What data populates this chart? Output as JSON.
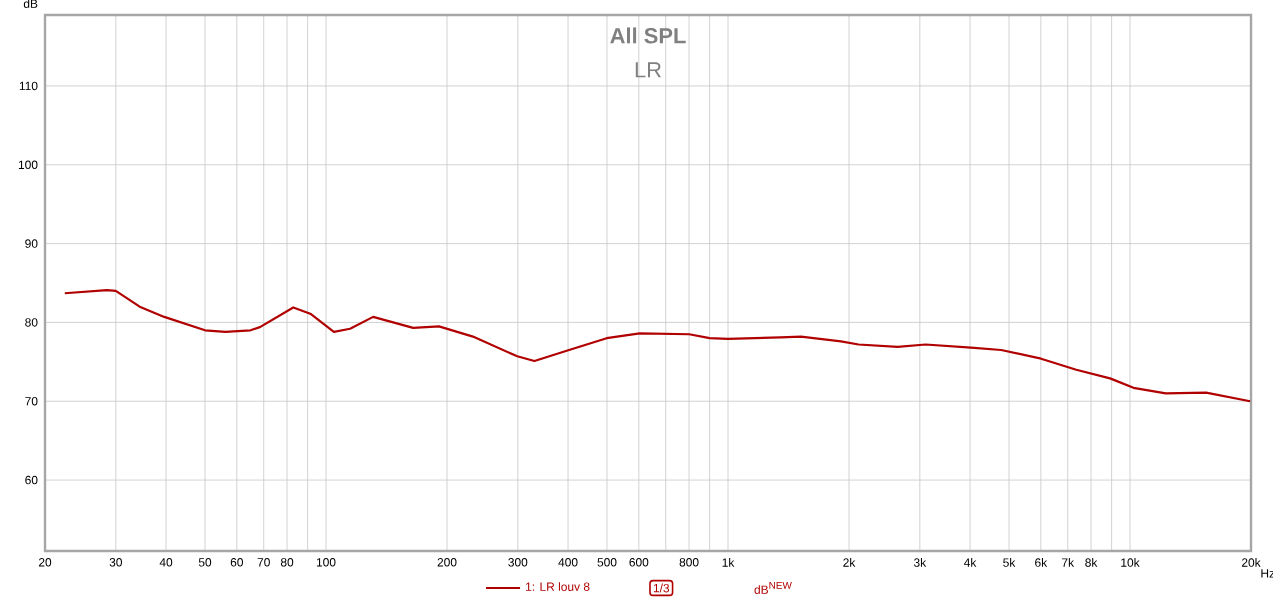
{
  "chart_data": {
    "type": "line",
    "title": "All SPL",
    "subtitle": "LR",
    "ylabel": "dB",
    "x": [
      22.4,
      28.5,
      30,
      34.4,
      39.6,
      50,
      56.2,
      64.9,
      68.5,
      82.9,
      91.4,
      104.6,
      114.8,
      131,
      164.7,
      191,
      232,
      299,
      330,
      397,
      499,
      603,
      801,
      900,
      1000,
      1353,
      1519,
      1910,
      2113,
      2641,
      3101,
      4020,
      4780,
      6010,
      7350,
      8920,
      10200,
      12270,
      15460,
      19900
    ],
    "series": [
      {
        "name": "1: LR louv 8",
        "color": "#b00000",
        "values": [
          83.7,
          84.1,
          84.0,
          82.0,
          80.7,
          79.0,
          78.8,
          79.0,
          79.4,
          81.9,
          81.1,
          78.8,
          79.2,
          80.7,
          79.3,
          79.5,
          78.2,
          75.7,
          75.1,
          76.4,
          78.0,
          78.6,
          78.5,
          78.0,
          77.9,
          78.1,
          78.2,
          77.6,
          77.2,
          76.9,
          77.2,
          76.8,
          76.5,
          75.4,
          74.0,
          72.9,
          71.7,
          71.0,
          71.1,
          70.0
        ]
      }
    ],
    "xlim": [
      20,
      20000
    ],
    "ylim": [
      51,
      119
    ],
    "xticks": [
      {
        "value": 20,
        "label": "20"
      },
      {
        "value": 30,
        "label": "30"
      },
      {
        "value": 40,
        "label": "40"
      },
      {
        "value": 50,
        "label": "50"
      },
      {
        "value": 60,
        "label": "60"
      },
      {
        "value": 70,
        "label": "70"
      },
      {
        "value": 80,
        "label": "80"
      },
      {
        "value": 90,
        "label": null
      },
      {
        "value": 100,
        "label": "100"
      },
      {
        "value": 200,
        "label": "200"
      },
      {
        "value": 300,
        "label": "300"
      },
      {
        "value": 400,
        "label": "400"
      },
      {
        "value": 500,
        "label": "500"
      },
      {
        "value": 600,
        "label": "600"
      },
      {
        "value": 700,
        "label": null
      },
      {
        "value": 800,
        "label": "800"
      },
      {
        "value": 900,
        "label": null
      },
      {
        "value": 1000,
        "label": "1k"
      },
      {
        "value": 2000,
        "label": "2k"
      },
      {
        "value": 3000,
        "label": "3k"
      },
      {
        "value": 4000,
        "label": "4k"
      },
      {
        "value": 5000,
        "label": "5k"
      },
      {
        "value": 6000,
        "label": "6k"
      },
      {
        "value": 7000,
        "label": "7k"
      },
      {
        "value": 8000,
        "label": "8k"
      },
      {
        "value": 9000,
        "label": null
      },
      {
        "value": 10000,
        "label": "10k"
      },
      {
        "value": 20000,
        "label": "20k"
      }
    ],
    "xlabel": "Hz",
    "yticks": [
      60,
      70,
      80,
      90,
      100,
      110
    ],
    "log": "x",
    "grid": true,
    "legend": "bottom",
    "marker": "none",
    "annotations": [
      "1/3",
      "dB$^{NEW}$"
    ]
  }
}
